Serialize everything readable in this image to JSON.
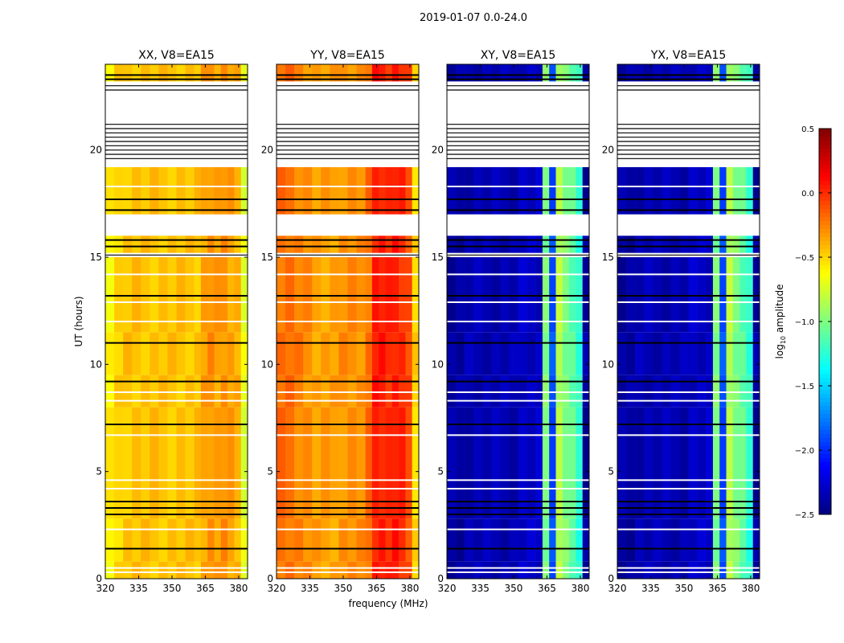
{
  "chart_data": {
    "type": "heatmap",
    "title": "2019-01-07 0.0-24.0",
    "xlabel": "frequency (MHz)",
    "ylabel": "UT (hours)",
    "xlim": [
      320,
      384
    ],
    "ylim": [
      0,
      24
    ],
    "xticks": [
      "320",
      "335",
      "350",
      "365",
      "380"
    ],
    "xtick_values": [
      320,
      335,
      350,
      365,
      380
    ],
    "yticks": [
      "0",
      "5",
      "10",
      "15",
      "20"
    ],
    "ytick_values": [
      0,
      5,
      10,
      15,
      20
    ],
    "colorbar": {
      "label": "log10 amplitude",
      "label_main": "log",
      "label_sub": "10",
      "label_rest": " amplitude",
      "range": [
        -2.5,
        0.5
      ],
      "ticks": [
        "0.5",
        "0.0",
        "−0.5",
        "−1.0",
        "−1.5",
        "−2.0",
        "−2.5"
      ],
      "tick_values": [
        0.5,
        0.0,
        -0.5,
        -1.0,
        -1.5,
        -2.0,
        -2.5
      ],
      "colormap": "jet"
    },
    "data_time_segments": [
      [
        0,
        0.8
      ],
      [
        0.8,
        2.8
      ],
      [
        2.8,
        8.0
      ],
      [
        8.0,
        9.5
      ],
      [
        9.5,
        11.5
      ],
      [
        11.5,
        15.0
      ],
      [
        15.2,
        16.0
      ],
      [
        17.0,
        19.2
      ],
      [
        23.2,
        24.0
      ]
    ],
    "flag_lines_hours": [
      0.3,
      0.5,
      1.4,
      2.3,
      3.0,
      3.3,
      3.6,
      4.2,
      4.6,
      6.7,
      7.2,
      8.3,
      8.7,
      9.2,
      11.0,
      12.0,
      12.9,
      13.2,
      14.2,
      15.1,
      15.5,
      15.8,
      17.2,
      17.7,
      18.3,
      19.6,
      19.8,
      20.0,
      20.2,
      20.4,
      20.6,
      20.8,
      21.0,
      21.2,
      22.8,
      23.0,
      23.3,
      23.5
    ],
    "panels": [
      {
        "title": "XX, V8=EA15",
        "freq_bins": [
          320,
          324,
          328,
          332,
          336,
          340,
          344,
          348,
          352,
          356,
          360,
          363,
          366,
          369,
          372,
          375,
          378,
          381
        ],
        "values": [
          -0.6,
          -0.5,
          -0.45,
          -0.45,
          -0.45,
          -0.45,
          -0.45,
          -0.45,
          -0.45,
          -0.45,
          -0.45,
          -0.35,
          -0.3,
          -0.35,
          -0.3,
          -0.35,
          -0.4,
          -0.7
        ]
      },
      {
        "title": "YY, V8=EA15",
        "freq_bins": [
          320,
          324,
          328,
          332,
          336,
          340,
          344,
          348,
          352,
          356,
          360,
          363,
          366,
          369,
          372,
          375,
          378,
          381
        ],
        "values": [
          -0.2,
          -0.2,
          -0.25,
          -0.3,
          -0.35,
          -0.35,
          -0.35,
          -0.3,
          -0.3,
          -0.3,
          -0.2,
          0.05,
          0.05,
          0.0,
          0.05,
          0.0,
          -0.1,
          -0.5
        ]
      },
      {
        "title": "XY, V8=EA15",
        "freq_bins": [
          320,
          324,
          328,
          332,
          336,
          340,
          344,
          348,
          352,
          356,
          360,
          363,
          366,
          369,
          372,
          375,
          378,
          381
        ],
        "values": [
          -2.4,
          -2.4,
          -2.35,
          -2.35,
          -2.35,
          -2.35,
          -2.35,
          -2.35,
          -2.3,
          -2.3,
          -2.3,
          -1.0,
          -1.9,
          -0.85,
          -1.0,
          -1.1,
          -1.25,
          -2.4
        ]
      },
      {
        "title": "YX, V8=EA15",
        "freq_bins": [
          320,
          324,
          328,
          332,
          336,
          340,
          344,
          348,
          352,
          356,
          360,
          363,
          366,
          369,
          372,
          375,
          378,
          381
        ],
        "values": [
          -2.4,
          -2.4,
          -2.35,
          -2.35,
          -2.35,
          -2.35,
          -2.35,
          -2.35,
          -2.3,
          -2.3,
          -2.3,
          -1.0,
          -1.9,
          -0.85,
          -1.0,
          -1.1,
          -1.25,
          -2.4
        ]
      }
    ]
  }
}
